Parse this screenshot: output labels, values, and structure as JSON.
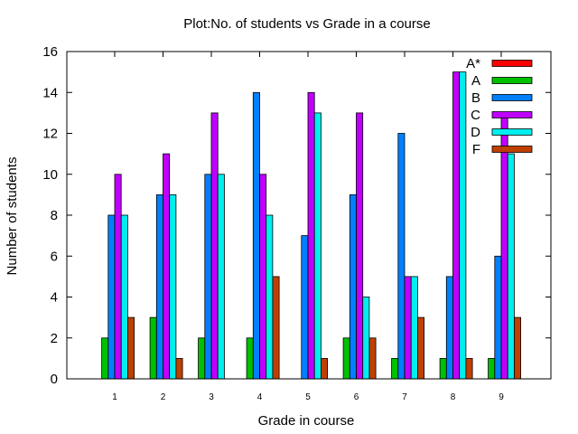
{
  "chart_data": {
    "type": "bar",
    "title": "Plot:No. of students vs Grade in a course",
    "xlabel": "Grade in course",
    "ylabel": "Number of students",
    "categories": [
      "1",
      "2",
      "3",
      "4",
      "5",
      "6",
      "7",
      "8",
      "9"
    ],
    "ylim": [
      0,
      16
    ],
    "yticks": [
      "0",
      "2",
      "4",
      "6",
      "8",
      "10",
      "12",
      "14",
      "16"
    ],
    "grid": false,
    "legend_position": "top-right",
    "series": [
      {
        "name": "A*",
        "color": "#ff0000",
        "values": [
          0,
          0,
          0,
          0,
          0,
          0,
          0,
          0,
          0
        ]
      },
      {
        "name": "A",
        "color": "#00c000",
        "values": [
          2,
          3,
          2,
          2,
          0,
          2,
          1,
          1,
          1
        ]
      },
      {
        "name": "B",
        "color": "#0080ff",
        "values": [
          8,
          9,
          10,
          14,
          7,
          9,
          12,
          5,
          6
        ]
      },
      {
        "name": "C",
        "color": "#c000ff",
        "values": [
          10,
          11,
          13,
          10,
          14,
          13,
          5,
          15,
          13
        ]
      },
      {
        "name": "D",
        "color": "#00eeee",
        "values": [
          8,
          9,
          10,
          8,
          13,
          4,
          5,
          15,
          11
        ]
      },
      {
        "name": "F",
        "color": "#c04000",
        "values": [
          3,
          1,
          0,
          5,
          1,
          2,
          3,
          1,
          3
        ]
      }
    ]
  }
}
